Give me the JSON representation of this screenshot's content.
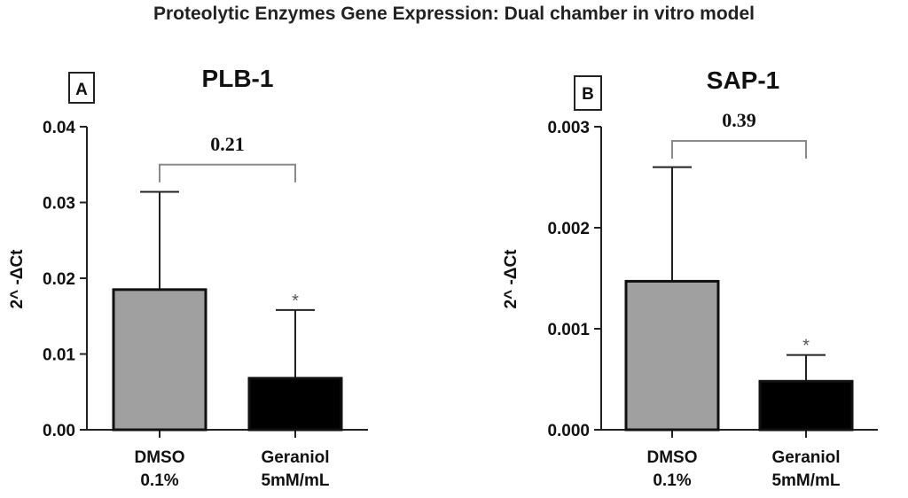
{
  "title": "Proteolytic Enzymes Gene Expression: Dual chamber in vitro model",
  "colors": {
    "dmso": "#a0a0a0",
    "geraniol": "#000000",
    "axis": "#222222",
    "bracket": "#8a8a8a"
  },
  "chart_data": [
    {
      "type": "bar",
      "panel": "A",
      "title": "PLB-1",
      "ylabel": "2^ -ΔCt",
      "ylim": [
        0,
        0.04
      ],
      "yticks": [
        "0.00",
        "0.01",
        "0.02",
        "0.03",
        "0.04"
      ],
      "categories": [
        [
          "DMSO",
          "0.1%"
        ],
        [
          "Geraniol",
          "5mM/mL"
        ]
      ],
      "values": [
        0.0185,
        0.0068
      ],
      "error_upper": [
        0.0314,
        0.0158
      ],
      "significance": [
        "",
        "*"
      ],
      "comparison_label": "0.21",
      "bracket_level": 0.035
    },
    {
      "type": "bar",
      "panel": "B",
      "title": "SAP-1",
      "ylabel": "2^ -ΔCt",
      "ylim": [
        0,
        0.003
      ],
      "yticks": [
        "0.000",
        "0.001",
        "0.002",
        "0.003"
      ],
      "categories": [
        [
          "DMSO",
          "0.1%"
        ],
        [
          "Geraniol",
          "5mM/mL"
        ]
      ],
      "values": [
        0.00147,
        0.00048
      ],
      "error_upper": [
        0.0026,
        0.00074
      ],
      "significance": [
        "",
        "*"
      ],
      "comparison_label": "0.39",
      "bracket_level": 0.00286
    }
  ]
}
